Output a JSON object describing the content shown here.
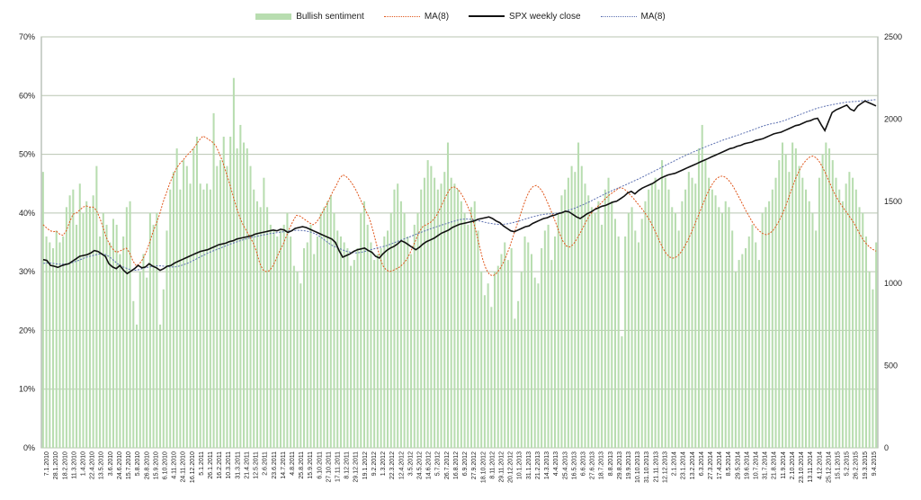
{
  "colors": {
    "bar": "#b8ddb0",
    "ma_sentiment": "#e0561b",
    "spx": "#111111",
    "ma_spx": "#5b6fb0",
    "grid": "#b9c5b2"
  },
  "legend": {
    "bullish": "Bullish sentiment",
    "ma1": "MA(8)",
    "spx": "SPX weekly close",
    "ma2": "MA(8)"
  },
  "chart_data": {
    "type": "bar+line",
    "legend_position": "top-center",
    "grid": true,
    "left_axis": {
      "min": 0,
      "max": 70,
      "ticks": [
        "0%",
        "10%",
        "20%",
        "30%",
        "40%",
        "50%",
        "60%",
        "70%"
      ]
    },
    "right_axis": {
      "min": 0,
      "max": 2500,
      "ticks": [
        "0",
        "500",
        "1000",
        "1500",
        "2000",
        "2500"
      ]
    },
    "x_tick_labels": [
      "7.1.2010",
      "28.1.2010",
      "18.2.2010",
      "11.3.2010",
      "1.4.2010",
      "22.4.2010",
      "13.5.2010",
      "3.6.2010",
      "24.6.2010",
      "15.7.2010",
      "5.8.2010",
      "26.8.2010",
      "15.9.2010",
      "6.10.2010",
      "4.11.2010",
      "24.11.2010",
      "16.12.2010",
      "5.1.2011",
      "26.1.2011",
      "16.2.2011",
      "10.3.2011",
      "31.3.2011",
      "21.4.2011",
      "12.5.2011",
      "2.6.2011",
      "23.6.2011",
      "14.7.2011",
      "4.8.2011",
      "25.8.2011",
      "15.9.2011",
      "6.10.2011",
      "27.10.2011",
      "17.11.2011",
      "8.12.2011",
      "29.12.2011",
      "19.1.2012",
      "9.2.2012",
      "1.3.2012",
      "22.3.2012",
      "12.4.2012",
      "3.5.2012",
      "24.5.2012",
      "14.6.2012",
      "5.7.2012",
      "26.7.2012",
      "16.8.2012",
      "6.9.2012",
      "27.9.2012",
      "18.10.2012",
      "8.11.2012",
      "29.11.2012",
      "20.12.2012",
      "10.1.2013",
      "31.1.2013",
      "21.2.2013",
      "14.3.2013",
      "4.4.2013",
      "25.4.2013",
      "16.5.2013",
      "6.6.2013",
      "27.6.2013",
      "18.7.2013",
      "8.8.2013",
      "29.8.2013",
      "19.9.2013",
      "10.10.2013",
      "31.10.2013",
      "21.11.2013",
      "12.12.2013",
      "2.1.2014",
      "23.1.2014",
      "13.2.2014",
      "6.3.2014",
      "27.3.2014",
      "17.4.2014",
      "8.5.2014",
      "29.5.2014",
      "19.6.2014",
      "10.7.2014",
      "31.7.2014",
      "21.8.2014",
      "11.9.2014",
      "2.10.2014",
      "23.10.2014",
      "13.11.2014",
      "4.12.2014",
      "25.12.2014",
      "15.1.2015",
      "5.2.2015",
      "26.2.2015",
      "19.3.2015",
      "9.4.2015"
    ],
    "bullish_sentiment": [
      47,
      36,
      35,
      34,
      37,
      35,
      36,
      41,
      43,
      44,
      38,
      45,
      40,
      42,
      41,
      43,
      48,
      36,
      40,
      38,
      35,
      39,
      38,
      33,
      36,
      41,
      42,
      25,
      21,
      30,
      33,
      29,
      40,
      38,
      40,
      21,
      27,
      37,
      44,
      47,
      51,
      44,
      49,
      48,
      45,
      51,
      53,
      45,
      44,
      45,
      44,
      57,
      48,
      49,
      53,
      48,
      53,
      63,
      51,
      55,
      52,
      51,
      48,
      44,
      42,
      41,
      46,
      41,
      38,
      37,
      36,
      37,
      38,
      40,
      36,
      31,
      30,
      28,
      34,
      35,
      38,
      33,
      36,
      40,
      41,
      42,
      43,
      40,
      37,
      36,
      35,
      34,
      31,
      32,
      34,
      40,
      42,
      38,
      35,
      32,
      33,
      34,
      36,
      37,
      40,
      44,
      45,
      42,
      40,
      36,
      33,
      38,
      40,
      44,
      46,
      49,
      48,
      46,
      44,
      45,
      47,
      52,
      46,
      45,
      44,
      42,
      40,
      38,
      41,
      42,
      37,
      30,
      26,
      28,
      24,
      30,
      31,
      33,
      35,
      32,
      34,
      22,
      25,
      30,
      36,
      35,
      33,
      29,
      28,
      34,
      37,
      38,
      32,
      36,
      40,
      43,
      44,
      46,
      48,
      47,
      52,
      48,
      45,
      43,
      41,
      40,
      42,
      38,
      44,
      46,
      42,
      39,
      36,
      19,
      36,
      40,
      41,
      37,
      35,
      39,
      42,
      44,
      45,
      46,
      44,
      49,
      46,
      44,
      41,
      40,
      37,
      42,
      44,
      47,
      46,
      45,
      51,
      55,
      49,
      46,
      44,
      43,
      41,
      40,
      42,
      41,
      37,
      30,
      32,
      33,
      34,
      36,
      38,
      35,
      32,
      40,
      41,
      42,
      44,
      46,
      49,
      52,
      50,
      47,
      52,
      51,
      48,
      46,
      44,
      42,
      40,
      37,
      46,
      50,
      52,
      51,
      49,
      46,
      44,
      42,
      45,
      47,
      46,
      44,
      41,
      40,
      36,
      30,
      27,
      35
    ],
    "ma_sentiment": [
      38,
      37.5,
      37,
      36.8,
      36.9,
      36.4,
      36.2,
      37,
      38.5,
      39.8,
      40,
      40.5,
      41,
      41.2,
      41,
      41,
      40.5,
      39.2,
      37.6,
      35.8,
      34.6,
      33.8,
      33.3,
      33.5,
      33.8,
      34,
      33.2,
      31.8,
      31,
      31.4,
      32.2,
      33.4,
      35,
      36.8,
      38.2,
      39.8,
      41.8,
      43.4,
      45,
      46.4,
      47.6,
      48.4,
      49,
      49.7,
      50.3,
      50.9,
      51.7,
      52.5,
      53.1,
      52.8,
      52.4,
      52,
      51.3,
      50,
      48.6,
      46.8,
      45,
      43,
      41,
      39.3,
      38,
      37,
      36,
      35,
      33.5,
      31.5,
      30.3,
      30,
      30.2,
      31,
      32.2,
      33.5,
      34.6,
      36,
      37.4,
      38.6,
      39.6,
      39.5,
      39.1,
      38.7,
      38.3,
      38,
      38.4,
      39.2,
      40.3,
      41.3,
      42.5,
      43.7,
      44.7,
      45.9,
      46.5,
      46.2,
      45.6,
      44.8,
      43.8,
      42.6,
      41.4,
      40.2,
      39,
      37,
      34.8,
      32.6,
      31,
      30.3,
      30,
      30.2,
      30.5,
      30.8,
      31.3,
      32,
      33,
      34.3,
      35.6,
      36.9,
      37.7,
      38,
      38.3,
      38.8,
      39.5,
      40.6,
      41.8,
      43,
      44,
      44.5,
      44.3,
      43.7,
      42.8,
      41.7,
      40.4,
      38.8,
      36.7,
      34.3,
      32,
      30.4,
      29.5,
      29.3,
      29.7,
      30.4,
      31.4,
      32.7,
      34.2,
      35.9,
      37.6,
      39.3,
      41,
      42.6,
      43.8,
      44.5,
      44.7,
      44.3,
      43.5,
      42.3,
      41,
      39.6,
      38.1,
      36.5,
      35.2,
      34.4,
      34.2,
      34.6,
      35.4,
      36.4,
      37.5,
      38.6,
      39.6,
      40.3,
      40.9,
      41.4,
      42,
      42.6,
      43.1,
      43.5,
      43.9,
      44.3,
      44.2,
      43.8,
      43.2,
      42.6,
      41.9,
      41.2,
      40.5,
      39.7,
      38.8,
      37.7,
      36.5,
      35.2,
      34,
      33.1,
      32.5,
      32.3,
      32.5,
      33,
      33.8,
      34.8,
      36,
      37.3,
      38.7,
      40.1,
      41.5,
      42.9,
      44.1,
      45.1,
      45.8,
      46.2,
      46.3,
      46,
      45.4,
      44.6,
      43.6,
      42.5,
      41.4,
      40.3,
      39.3,
      38.3,
      37.5,
      36.9,
      36.5,
      36.3,
      36.5,
      37,
      37.8,
      38.8,
      40,
      41.4,
      43,
      44.6,
      46.1,
      47.3,
      48.3,
      49,
      49.5,
      49.7,
      49.4,
      48.7,
      47.7,
      46.5,
      45.2,
      43.9,
      42.8,
      41.8,
      41,
      40.2,
      39.4,
      38.6,
      37.6,
      36.5,
      35.5,
      34.8,
      34.2,
      33.8,
      33.5
    ],
    "spx_weekly_close": [
      1145,
      1140,
      1110,
      1105,
      1098,
      1108,
      1115,
      1120,
      1135,
      1150,
      1165,
      1170,
      1175,
      1185,
      1200,
      1195,
      1180,
      1165,
      1120,
      1100,
      1090,
      1110,
      1080,
      1060,
      1075,
      1090,
      1110,
      1095,
      1100,
      1120,
      1105,
      1095,
      1080,
      1090,
      1105,
      1110,
      1125,
      1135,
      1145,
      1155,
      1165,
      1175,
      1185,
      1195,
      1200,
      1205,
      1215,
      1225,
      1235,
      1240,
      1245,
      1255,
      1260,
      1270,
      1275,
      1280,
      1285,
      1290,
      1300,
      1305,
      1310,
      1315,
      1320,
      1325,
      1320,
      1330,
      1325,
      1310,
      1320,
      1335,
      1340,
      1345,
      1340,
      1330,
      1320,
      1310,
      1300,
      1290,
      1280,
      1270,
      1250,
      1200,
      1160,
      1170,
      1180,
      1195,
      1205,
      1210,
      1215,
      1200,
      1190,
      1165,
      1155,
      1180,
      1200,
      1215,
      1225,
      1240,
      1260,
      1250,
      1235,
      1220,
      1205,
      1220,
      1240,
      1255,
      1265,
      1275,
      1290,
      1305,
      1315,
      1325,
      1340,
      1350,
      1360,
      1365,
      1370,
      1375,
      1380,
      1390,
      1395,
      1400,
      1405,
      1395,
      1380,
      1370,
      1350,
      1335,
      1320,
      1315,
      1325,
      1335,
      1345,
      1350,
      1365,
      1375,
      1385,
      1395,
      1400,
      1410,
      1415,
      1425,
      1430,
      1440,
      1435,
      1420,
      1405,
      1395,
      1410,
      1425,
      1435,
      1450,
      1460,
      1470,
      1475,
      1485,
      1495,
      1500,
      1515,
      1530,
      1550,
      1560,
      1545,
      1565,
      1580,
      1590,
      1600,
      1610,
      1625,
      1640,
      1650,
      1660,
      1665,
      1670,
      1680,
      1690,
      1700,
      1710,
      1720,
      1730,
      1740,
      1750,
      1760,
      1770,
      1780,
      1790,
      1800,
      1810,
      1820,
      1825,
      1835,
      1840,
      1850,
      1855,
      1860,
      1870,
      1875,
      1880,
      1890,
      1900,
      1910,
      1915,
      1920,
      1930,
      1940,
      1950,
      1960,
      1965,
      1975,
      1985,
      1990,
      2000,
      2005,
      1965,
      1930,
      1985,
      2040,
      2055,
      2065,
      2075,
      2085,
      2060,
      2050,
      2080,
      2095,
      2110,
      2100,
      2090,
      2080
    ],
    "ma_spx": [
      1122,
      1125,
      1124,
      1120,
      1117,
      1117,
      1118,
      1124,
      1132,
      1140,
      1150,
      1160,
      1166,
      1172,
      1178,
      1180,
      1175,
      1161,
      1140,
      1120,
      1104,
      1095,
      1086,
      1079,
      1082,
      1088,
      1096,
      1100,
      1103,
      1107,
      1107,
      1105,
      1102,
      1100,
      1102,
      1107,
      1115,
      1124,
      1135,
      1147,
      1160,
      1172,
      1184,
      1194,
      1203,
      1212,
      1222,
      1232,
      1241,
      1249,
      1257,
      1265,
      1272,
      1278,
      1284,
      1289,
      1294,
      1298,
      1303,
      1306,
      1310,
      1313,
      1317,
      1320,
      1322,
      1324,
      1323,
      1320,
      1315,
      1308,
      1297,
      1282,
      1263,
      1245,
      1230,
      1219,
      1210,
      1200,
      1193,
      1188,
      1186,
      1188,
      1193,
      1200,
      1207,
      1213,
      1219,
      1225,
      1232,
      1240,
      1250,
      1259,
      1268,
      1277,
      1286,
      1296,
      1305,
      1314,
      1323,
      1332,
      1340,
      1348,
      1356,
      1363,
      1371,
      1378,
      1385,
      1390,
      1392,
      1391,
      1388,
      1384,
      1378,
      1372,
      1367,
      1363,
      1360,
      1359,
      1361,
      1364,
      1369,
      1375,
      1382,
      1390,
      1397,
      1404,
      1410,
      1416,
      1420,
      1423,
      1424,
      1426,
      1430,
      1435,
      1442,
      1450,
      1458,
      1468,
      1478,
      1489,
      1500,
      1512,
      1524,
      1536,
      1548,
      1559,
      1570,
      1580,
      1590,
      1600,
      1611,
      1622,
      1633,
      1644,
      1656,
      1668,
      1680,
      1692,
      1704,
      1716,
      1728,
      1740,
      1752,
      1764,
      1775,
      1786,
      1797,
      1807,
      1817,
      1827,
      1837,
      1846,
      1855,
      1864,
      1873,
      1881,
      1889,
      1897,
      1905,
      1913,
      1921,
      1930,
      1939,
      1948,
      1956,
      1964,
      1970,
      1975,
      1980,
      1987,
      1995,
      2004,
      2013,
      2022,
      2031,
      2040,
      2049,
      2058,
      2066,
      2072,
      2078,
      2083,
      2088,
      2093,
      2097,
      2101,
      2104,
      2106,
      2108,
      2110,
      2112,
      2114,
      2116,
      2118
    ]
  }
}
